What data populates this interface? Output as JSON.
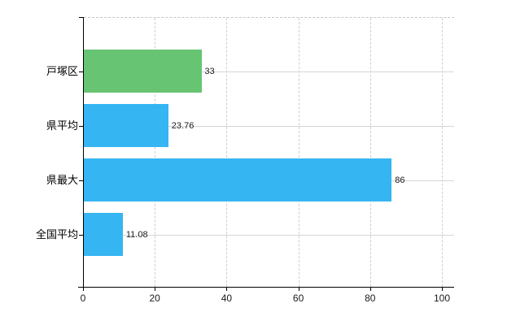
{
  "chart_data": {
    "type": "bar",
    "orientation": "horizontal",
    "title": "",
    "categories": [
      "戸塚区",
      "県平均",
      "県最大",
      "全国平均"
    ],
    "values": [
      33,
      23.76,
      86,
      11.08
    ],
    "value_labels": [
      "33",
      "23.76",
      "86",
      "11.08"
    ],
    "series": [
      {
        "name": "",
        "values": [
          33,
          23.76,
          86,
          11.08
        ]
      }
    ],
    "bar_colors": [
      "#67c472",
      "#35b5f1",
      "#35b5f1",
      "#35b5f1"
    ],
    "xlabel": "",
    "ylabel": "",
    "xlim": [
      0,
      100
    ],
    "x_ticks": [
      0,
      20,
      40,
      60,
      80,
      100
    ],
    "x_tick_labels": [
      "0",
      "20",
      "40",
      "60",
      "80",
      "100"
    ],
    "grid": "on",
    "legend": "none",
    "colors": {
      "background": "#ffffff",
      "axis": "#000000",
      "gridline_horizontal": "#d6d6d6",
      "gridline_vertical_dashed": "#cfcfcf",
      "bar_green": "#67c472",
      "bar_blue": "#35b5f1",
      "text": "#1a1a1a"
    }
  }
}
